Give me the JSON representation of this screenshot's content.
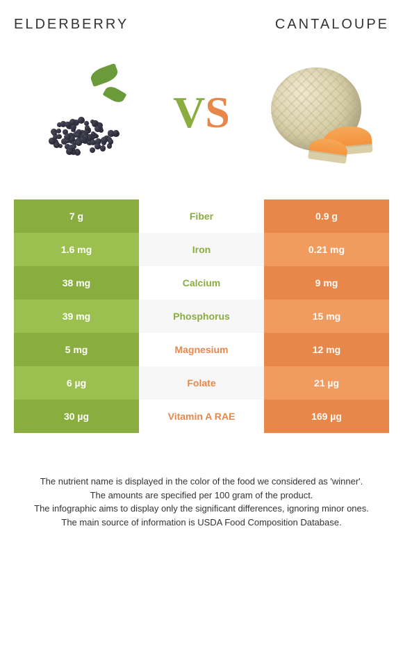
{
  "header": {
    "left_title": "ELDERBERRY",
    "right_title": "CANTALOUPE"
  },
  "vs": {
    "v": "V",
    "s": "S"
  },
  "colors": {
    "left_primary": "#8aad3f",
    "left_alt": "#9cc04f",
    "right_primary": "#e8874a",
    "right_alt": "#f29b5f",
    "mid_alt": "#f7f7f7"
  },
  "rows": [
    {
      "left": "7 g",
      "label": "Fiber",
      "right": "0.9 g",
      "winner": "left"
    },
    {
      "left": "1.6 mg",
      "label": "Iron",
      "right": "0.21 mg",
      "winner": "left"
    },
    {
      "left": "38 mg",
      "label": "Calcium",
      "right": "9 mg",
      "winner": "left"
    },
    {
      "left": "39 mg",
      "label": "Phosphorus",
      "right": "15 mg",
      "winner": "left"
    },
    {
      "left": "5 mg",
      "label": "Magnesium",
      "right": "12 mg",
      "winner": "right"
    },
    {
      "left": "6 µg",
      "label": "Folate",
      "right": "21 µg",
      "winner": "right"
    },
    {
      "left": "30 µg",
      "label": "Vitamin A RAE",
      "right": "169 µg",
      "winner": "right"
    }
  ],
  "footer": {
    "line1": "The nutrient name is displayed in the color of the food we considered as 'winner'.",
    "line2": "The amounts are specified per 100 gram of the product.",
    "line3": "The infographic aims to display only the significant differences, ignoring minor ones.",
    "line4": "The main source of information is USDA Food Composition Database."
  }
}
